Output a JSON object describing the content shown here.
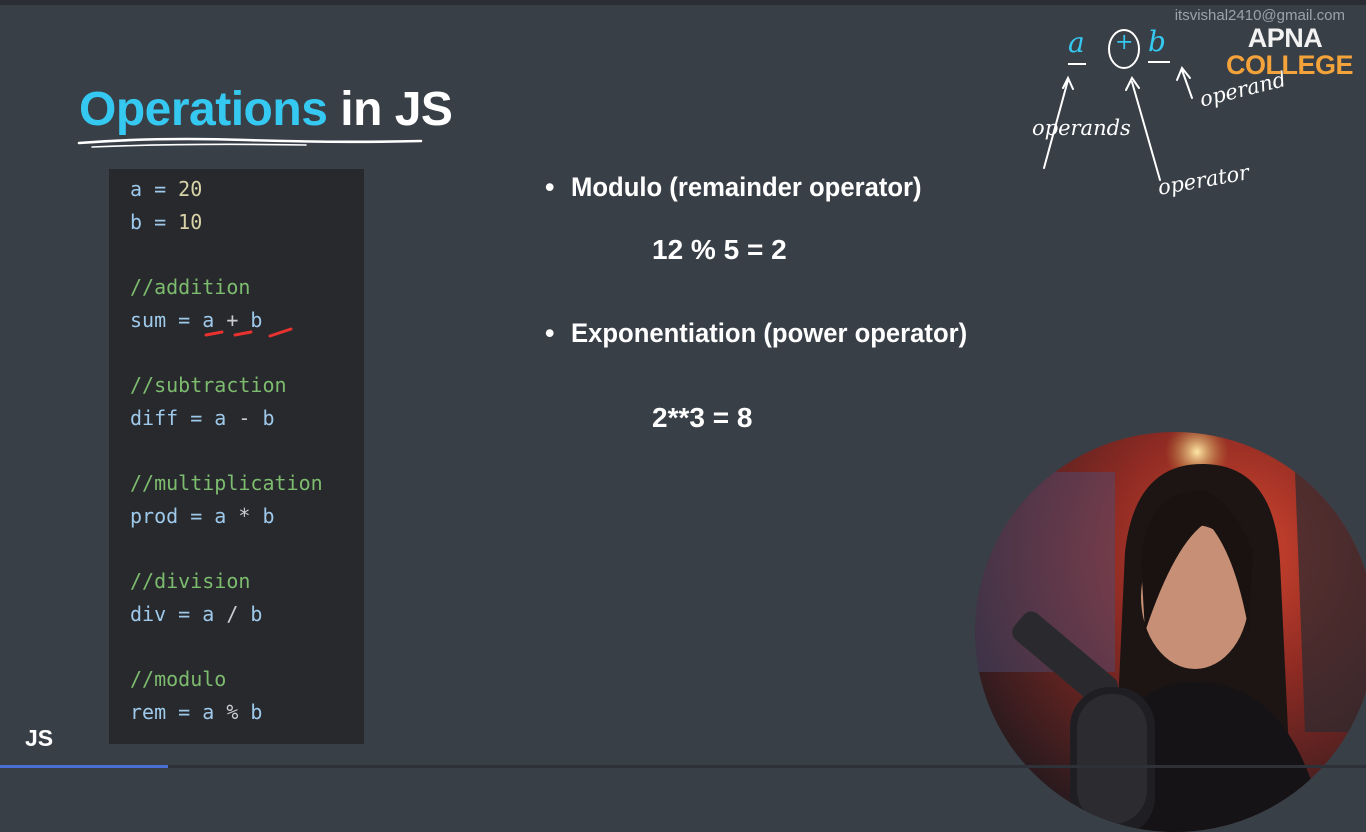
{
  "slide": {
    "title_highlight": "Operations",
    "title_rest": " in JS",
    "corner_label": "JS"
  },
  "watermark": {
    "email": "itsvishal2410@gmail.com"
  },
  "logo": {
    "line1": "APNA",
    "line2": "COLLEGE"
  },
  "code": {
    "a_decl": "a = ",
    "a_value": "20",
    "b_decl": "b = ",
    "b_value": "10",
    "c_add": "//addition",
    "l_add_lhs": "sum = ",
    "l_add_a": "a",
    "l_add_op": " + ",
    "l_add_b": "b",
    "c_sub": "//subtraction",
    "l_sub_lhs": "diff = ",
    "l_sub_a": "a",
    "l_sub_op": " - ",
    "l_sub_b": "b",
    "c_mul": "//multiplication",
    "l_mul_lhs": "prod = ",
    "l_mul_a": "a",
    "l_mul_op": " * ",
    "l_mul_b": "b",
    "c_div": "//division",
    "l_div_lhs": "div = ",
    "l_div_a": "a",
    "l_div_op": " / ",
    "l_div_b": "b",
    "c_mod": "//modulo",
    "l_mod_lhs": "rem = ",
    "l_mod_a": "a",
    "l_mod_op": " % ",
    "l_mod_b": "b"
  },
  "bullets": [
    {
      "text": "Modulo (remainder operator)",
      "example": "12 % 5 = 2"
    },
    {
      "text": "Exponentiation (power operator)",
      "example": "2**3 = 8"
    }
  ],
  "annotation": {
    "a": "a",
    "plus": "+",
    "b": "b",
    "operands": "operands",
    "operand": "operand",
    "operator": "operator"
  },
  "colors": {
    "background": "#393f47",
    "code_bg": "#27292d",
    "accent_blue": "#35c8f0",
    "comment_green": "#7dbb6e",
    "logo_orange": "#f4a33a"
  }
}
